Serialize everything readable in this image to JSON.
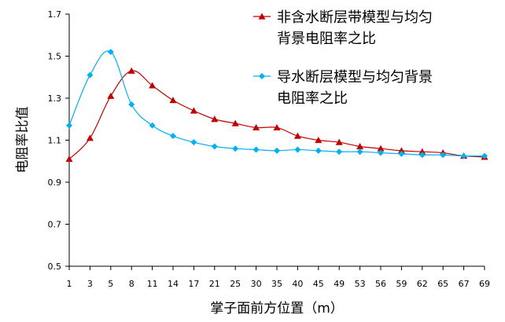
{
  "chart_data": {
    "type": "line",
    "title": "",
    "xlabel": "掌子面前方位置（m）",
    "ylabel": "电阻率比值",
    "ylim": [
      0.5,
      1.7
    ],
    "yticks": [
      "0.5",
      "0.7",
      "0.9",
      "1.1",
      "1.3",
      "1.5",
      "1.7"
    ],
    "x": [
      1,
      3,
      5,
      8,
      11,
      14,
      17,
      21,
      25,
      30,
      35,
      40,
      45,
      49,
      53,
      56,
      59,
      62,
      65,
      67,
      69
    ],
    "grid": false,
    "legend_position": "top-right",
    "series": [
      {
        "name": "非含水断层带模型与均匀背景电阻率之比",
        "name_lines": [
          "非含水断层带模型与均匀",
          "背景电阻率之比"
        ],
        "color": "#c00000",
        "marker": "triangle",
        "values": [
          1.01,
          1.11,
          1.31,
          1.43,
          1.36,
          1.29,
          1.24,
          1.2,
          1.18,
          1.16,
          1.16,
          1.12,
          1.1,
          1.09,
          1.07,
          1.06,
          1.05,
          1.045,
          1.04,
          1.025,
          1.02
        ]
      },
      {
        "name": "导水断层模型与均匀背景电阻率之比",
        "name_lines": [
          "导水断层模型与均匀背景",
          "电阻率之比"
        ],
        "color": "#00b0f0",
        "marker": "diamond",
        "values": [
          1.17,
          1.41,
          1.52,
          1.27,
          1.17,
          1.12,
          1.09,
          1.07,
          1.06,
          1.055,
          1.05,
          1.055,
          1.05,
          1.045,
          1.045,
          1.04,
          1.035,
          1.03,
          1.03,
          1.025,
          1.025
        ]
      }
    ]
  }
}
